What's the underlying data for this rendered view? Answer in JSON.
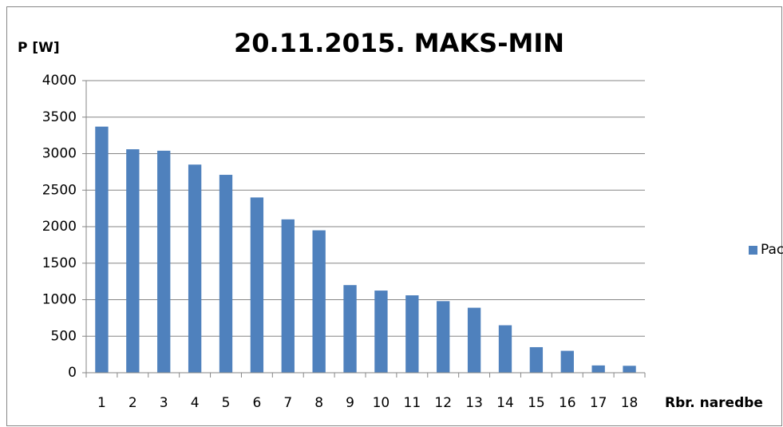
{
  "chart_data": {
    "type": "bar",
    "title": "20.11.2015. MAKS-MIN",
    "y_label": "P [W]",
    "x_label": "Rbr. naredbe",
    "categories": [
      "1",
      "2",
      "3",
      "4",
      "5",
      "6",
      "7",
      "8",
      "9",
      "10",
      "11",
      "12",
      "13",
      "14",
      "15",
      "16",
      "17",
      "18"
    ],
    "series": [
      {
        "name": "Pac",
        "color": "#4f81bd",
        "values": [
          3370,
          3060,
          3040,
          2850,
          2710,
          2400,
          2100,
          1950,
          1200,
          1125,
          1060,
          980,
          890,
          650,
          350,
          300,
          100,
          95
        ]
      }
    ],
    "ylim": [
      0,
      4000
    ],
    "yticks": [
      0,
      500,
      1000,
      1500,
      2000,
      2500,
      3000,
      3500,
      4000
    ],
    "grid": true,
    "legend": "right"
  }
}
